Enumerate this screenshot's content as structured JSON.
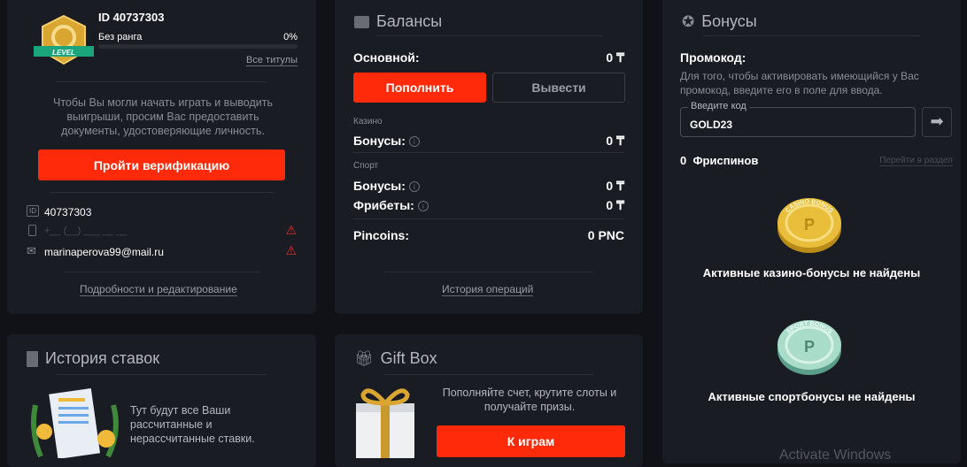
{
  "profile": {
    "id_title": "ID 40737303",
    "rank": "Без ранга",
    "rank_percent": "0%",
    "progress": 0,
    "all_titles": "Все титулы",
    "badge_text": "LEVEL",
    "verify_text": "Чтобы Вы могли начать играть и выводить выигрыши, просим Вас предоставить документы, удостоверяющие личность.",
    "verify_button": "Пройти верификацию",
    "user_id": "40737303",
    "phone_placeholder": "+__ (__) ___ __ __",
    "email": "marinaperova99@mail.ru",
    "details_link": "Подробности и редактирование"
  },
  "balances": {
    "title": "Балансы",
    "main_label": "Основной:",
    "main_value": "0 ₸",
    "deposit": "Пополнить",
    "withdraw": "Вывести",
    "casino_label": "Казино",
    "casino_bonus_label": "Бонусы:",
    "casino_bonus_value": "0 ₸",
    "sport_label": "Спорт",
    "sport_bonus_label": "Бонусы:",
    "sport_bonus_value": "0 ₸",
    "freebets_label": "Фрибеты:",
    "freebets_value": "0 ₸",
    "pincoins_label": "Pincoins:",
    "pincoins_value": "0 PNC",
    "history_link": "История операций"
  },
  "bonuses": {
    "title": "Бонусы",
    "promo_title": "Промокод:",
    "promo_desc": "Для того, чтобы активировать имеющийся у Вас промокод, введите его в поле для ввода.",
    "input_label": "Введите код",
    "input_value": "GOLD23",
    "freespins": "0  Фриспинов",
    "goto_section": "Перейти в раздел",
    "casino_coin_text": "CASINO BONUS",
    "sport_coin_text": "SPORT BONUS",
    "casino_empty": "Активные казино-бонусы не найдены",
    "sport_empty": "Активные спортбонусы не найдены"
  },
  "bet_history": {
    "title": "История ставок",
    "text": "Тут будут все Ваши рассчитанные и нерассчитанные ставки."
  },
  "giftbox": {
    "title": "Gift Box",
    "text": "Пополняйте счет, крутите слоты и получайте призы.",
    "button": "К играм"
  },
  "watermark": "Activate Windows"
}
